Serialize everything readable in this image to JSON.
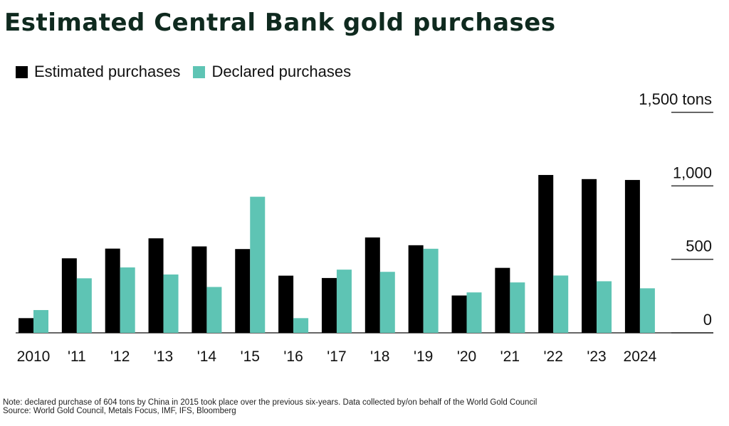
{
  "colors": {
    "estimated": "#000000",
    "declared": "#5ec4b4",
    "title": "#0f2a1f"
  },
  "chart_data": {
    "type": "bar",
    "title": "Estimated Central Bank gold purchases",
    "categories": [
      "2010",
      "'11",
      "'12",
      "'13",
      "'14",
      "'15",
      "'16",
      "'17",
      "'18",
      "'19",
      "'20",
      "'21",
      "'22",
      "'23",
      "2024"
    ],
    "series": [
      {
        "name": "Estimated purchases",
        "values": [
          100,
          507,
          573,
          643,
          588,
          570,
          389,
          373,
          649,
          596,
          254,
          442,
          1074,
          1046,
          1040
        ]
      },
      {
        "name": "Declared purchases",
        "values": [
          155,
          371,
          445,
          397,
          312,
          926,
          100,
          430,
          415,
          572,
          275,
          343,
          390,
          351,
          303
        ]
      }
    ],
    "y_ticks": [
      {
        "value": 0,
        "label": "0"
      },
      {
        "value": 500,
        "label": "500"
      },
      {
        "value": 1000,
        "label": "1,000"
      },
      {
        "value": 1500,
        "label": "1,500 tons"
      }
    ],
    "ylim": [
      0,
      1500
    ],
    "xlabel": "",
    "ylabel": "tons",
    "legend_position": "top-left",
    "notes": [
      "Note: declared purchase of 604 tons by China in 2015 took place over the previous six-years. Data collected by/on behalf of the World Gold Council",
      "Source: World Gold Council, Metals Focus, IMF, IFS, Bloomberg"
    ]
  }
}
